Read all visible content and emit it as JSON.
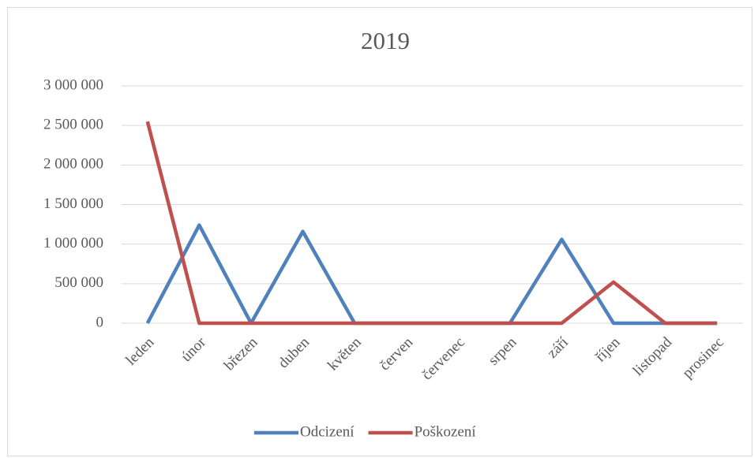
{
  "chart_data": {
    "type": "line",
    "title": "2019",
    "categories": [
      "leden",
      "únor",
      "březen",
      "duben",
      "květen",
      "červen",
      "červenec",
      "srpen",
      "září",
      "říjen",
      "listopad",
      "prosinec"
    ],
    "series": [
      {
        "name": "Odcizení",
        "color": "#4f81bd",
        "values": [
          0,
          1240000,
          0,
          1160000,
          0,
          0,
          0,
          0,
          1060000,
          0,
          0,
          0
        ]
      },
      {
        "name": "Poškození",
        "color": "#c0504d",
        "values": [
          2550000,
          0,
          0,
          0,
          0,
          0,
          0,
          0,
          0,
          520000,
          0,
          0
        ]
      }
    ],
    "ylim": [
      0,
      3000000
    ],
    "yticks": [
      0,
      {
        "value": 500000,
        "label": "500 000"
      },
      {
        "value": 1000000,
        "label": "1 000 000"
      },
      {
        "value": 1500000,
        "label": "1 500 000"
      },
      {
        "value": 2000000,
        "label": "2 000 000"
      },
      {
        "value": 2500000,
        "label": "2 500 000"
      },
      {
        "value": 3000000,
        "label": "3 000 000"
      }
    ],
    "grid": true,
    "legend": "bottom"
  }
}
